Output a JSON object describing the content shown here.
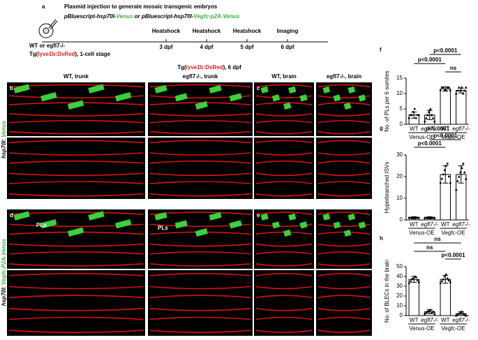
{
  "panel_a": {
    "letter": "a",
    "title": "Plasmid injection to generate mosaic transgenic embryos",
    "plasmids": [
      {
        "text": "pBluescript-hsp70l-",
        "color": "#000000"
      },
      {
        "text": "Venus",
        "color": "#3cb043"
      },
      {
        "text": " or ",
        "color": "#000000"
      },
      {
        "text": "pBluescript-hsp70l-",
        "color": "#000000"
      },
      {
        "text": "Vegfc-p2A-Venus",
        "color": "#3cb043"
      }
    ],
    "genotype": "WT or egfl7-/-",
    "line": [
      {
        "text": "Tg(",
        "color": "#000000"
      },
      {
        "text": "lyve1b:DsRed",
        "color": "#e02020"
      },
      {
        "text": "), 1-cell stage",
        "color": "#000000"
      }
    ],
    "timeline": [
      {
        "event": "Heatshock",
        "time": "3 dpf"
      },
      {
        "event": "Heatshock",
        "time": "4 dpf"
      },
      {
        "event": "Heatshock",
        "time": "5 dpf"
      },
      {
        "event": "Imaging",
        "time": "6 dpf"
      }
    ]
  },
  "images": {
    "header": [
      {
        "text": "Tg(",
        "color": "#000000"
      },
      {
        "text": "lyve1b:DsRed",
        "color": "#e02020"
      },
      {
        "text": "), 6 dpf",
        "color": "#000000"
      }
    ],
    "columns": [
      "WT, trunk",
      "egfl7-/-, trunk",
      "WT, brain",
      "egfl7-/-, brain"
    ],
    "letters": [
      "b",
      "c",
      "d",
      "e"
    ],
    "rows": [
      {
        "prefix": "hsp70l: ",
        "name": "Venus"
      },
      {
        "prefix": "hsp70l: ",
        "name": "Vegfc-P2A-Venus"
      }
    ],
    "arrow_labels": [
      "PLs",
      "PLs"
    ]
  },
  "chart_data": [
    {
      "type": "bar",
      "letter": "f",
      "ylabel": "No. of PLs per 6 somites",
      "categories": [
        "WT",
        "egfl7-/-",
        "WT",
        "egfl7-/-"
      ],
      "groups": [
        "Venus-OE",
        "Vegfc-OE"
      ],
      "color": "#ffffff",
      "values": [
        3,
        3,
        11.5,
        11
      ],
      "errors": [
        1,
        1.5,
        0.7,
        0.8
      ],
      "points": [
        [
          2,
          3,
          3,
          4,
          5,
          2,
          3,
          3
        ],
        [
          1,
          2,
          3,
          4,
          5,
          3,
          2,
          1
        ],
        [
          11,
          12,
          12,
          11,
          11,
          12,
          12,
          11
        ],
        [
          10,
          11,
          12,
          11,
          12,
          10,
          11,
          12
        ]
      ],
      "annotations": [
        "p<0.0001",
        "p<0.0001",
        "ns"
      ],
      "ylim": [
        0,
        15
      ],
      "yticks": [
        0,
        5,
        10,
        15
      ]
    },
    {
      "type": "bar",
      "letter": "g",
      "ylabel": "Hyperbranched ISVs",
      "categories": [
        "WT",
        "egfl7-/-",
        "WT",
        "egfl7-/-"
      ],
      "groups": [
        "Venus-OE",
        "Vegfc-OE"
      ],
      "color": "#ffffff",
      "values": [
        1,
        1,
        21,
        21
      ],
      "errors": [
        0.5,
        0.5,
        4,
        4
      ],
      "points": [
        [
          1,
          1,
          1,
          1,
          1,
          1,
          1,
          1
        ],
        [
          1,
          1,
          1,
          1,
          1,
          1,
          1,
          1
        ],
        [
          17,
          19,
          21,
          23,
          25,
          26,
          20,
          17
        ],
        [
          14,
          18,
          20,
          22,
          24,
          26,
          22,
          19
        ]
      ],
      "annotations": [
        "p<0.0001",
        "p<0.0001",
        "p<0.0001"
      ],
      "ylim": [
        0,
        30
      ],
      "yticks": [
        0,
        10,
        20,
        30
      ]
    },
    {
      "type": "bar",
      "letter": "h",
      "ylabel": "No. of BLECs in the brain",
      "categories": [
        "WT",
        "egfl7-/-",
        "WT",
        "egfl7-/-"
      ],
      "groups": [
        "Venus-OE",
        "Vegfc-OE"
      ],
      "color": "#ffffff",
      "values": [
        37,
        4,
        37,
        2
      ],
      "errors": [
        3,
        2,
        4,
        2
      ],
      "points": [
        [
          33,
          35,
          37,
          38,
          40,
          39,
          36,
          34
        ],
        [
          2,
          3,
          4,
          5,
          6,
          3,
          4,
          2
        ],
        [
          33,
          35,
          37,
          40,
          42,
          38,
          36,
          34
        ],
        [
          0,
          1,
          2,
          3,
          4,
          2,
          1,
          0
        ]
      ],
      "annotations": [
        "ns",
        "ns",
        "p<0.0001"
      ],
      "ylim": [
        0,
        50
      ],
      "yticks": [
        0,
        10,
        20,
        30,
        40,
        50
      ]
    }
  ]
}
